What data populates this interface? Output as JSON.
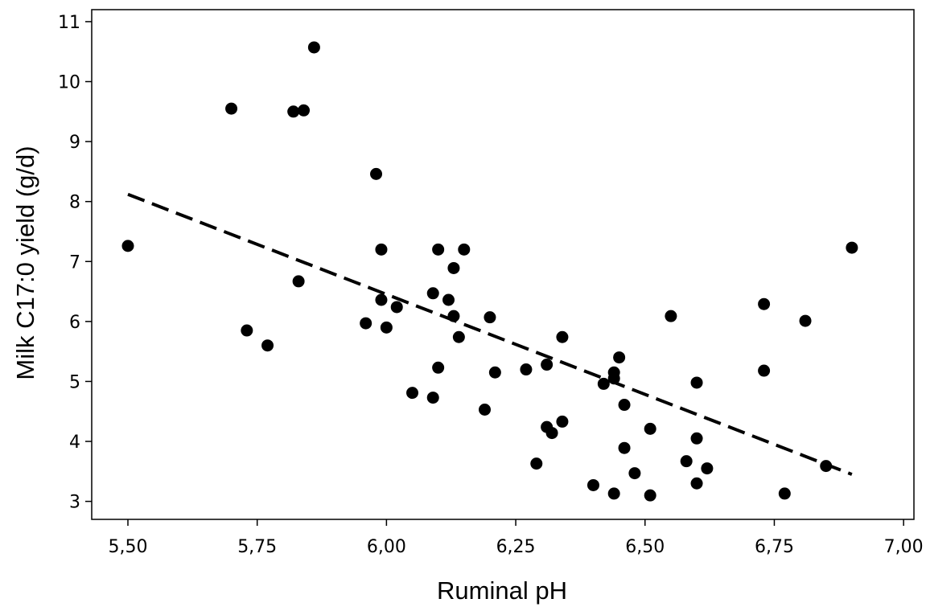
{
  "chart_data": {
    "type": "scatter",
    "title": "",
    "xlabel": "Ruminal pH",
    "ylabel": "Milk C17:0 yield (g/d)",
    "xlim": [
      5.43,
      7.02
    ],
    "ylim": [
      2.7,
      11.2
    ],
    "xticks": [
      5.5,
      5.75,
      6.0,
      6.25,
      6.5,
      6.75,
      7.0
    ],
    "xtick_labels": [
      "5,50",
      "5,75",
      "6,00",
      "6,25",
      "6,50",
      "6,75",
      "7,00"
    ],
    "yticks": [
      3,
      4,
      5,
      6,
      7,
      8,
      9,
      10,
      11
    ],
    "ytick_labels": [
      "3",
      "4",
      "5",
      "6",
      "7",
      "8",
      "9",
      "10",
      "11"
    ],
    "grid": false,
    "legend": "none",
    "marker_color": "#000000",
    "trend_line": {
      "style": "dashed",
      "color": "#000000",
      "x": [
        5.5,
        6.9
      ],
      "y": [
        8.12,
        3.45
      ]
    },
    "points": [
      {
        "x": 5.5,
        "y": 7.26
      },
      {
        "x": 5.7,
        "y": 9.55
      },
      {
        "x": 5.73,
        "y": 5.85
      },
      {
        "x": 5.77,
        "y": 5.6
      },
      {
        "x": 5.82,
        "y": 9.5
      },
      {
        "x": 5.83,
        "y": 6.67
      },
      {
        "x": 5.84,
        "y": 9.52
      },
      {
        "x": 5.86,
        "y": 10.57
      },
      {
        "x": 5.96,
        "y": 5.97
      },
      {
        "x": 5.98,
        "y": 8.46
      },
      {
        "x": 5.99,
        "y": 7.2
      },
      {
        "x": 5.99,
        "y": 6.36
      },
      {
        "x": 6.0,
        "y": 5.9
      },
      {
        "x": 6.02,
        "y": 6.24
      },
      {
        "x": 6.05,
        "y": 4.81
      },
      {
        "x": 6.09,
        "y": 6.47
      },
      {
        "x": 6.09,
        "y": 4.73
      },
      {
        "x": 6.1,
        "y": 7.2
      },
      {
        "x": 6.1,
        "y": 5.23
      },
      {
        "x": 6.12,
        "y": 6.36
      },
      {
        "x": 6.13,
        "y": 6.89
      },
      {
        "x": 6.13,
        "y": 6.09
      },
      {
        "x": 6.14,
        "y": 5.74
      },
      {
        "x": 6.15,
        "y": 7.2
      },
      {
        "x": 6.19,
        "y": 4.53
      },
      {
        "x": 6.2,
        "y": 6.07
      },
      {
        "x": 6.21,
        "y": 5.15
      },
      {
        "x": 6.27,
        "y": 5.2
      },
      {
        "x": 6.29,
        "y": 3.63
      },
      {
        "x": 6.31,
        "y": 5.28
      },
      {
        "x": 6.31,
        "y": 4.24
      },
      {
        "x": 6.32,
        "y": 4.14
      },
      {
        "x": 6.34,
        "y": 5.74
      },
      {
        "x": 6.34,
        "y": 4.33
      },
      {
        "x": 6.4,
        "y": 3.27
      },
      {
        "x": 6.42,
        "y": 4.96
      },
      {
        "x": 6.44,
        "y": 5.15
      },
      {
        "x": 6.44,
        "y": 5.05
      },
      {
        "x": 6.44,
        "y": 3.13
      },
      {
        "x": 6.45,
        "y": 5.4
      },
      {
        "x": 6.46,
        "y": 4.61
      },
      {
        "x": 6.46,
        "y": 3.89
      },
      {
        "x": 6.48,
        "y": 3.47
      },
      {
        "x": 6.51,
        "y": 4.21
      },
      {
        "x": 6.51,
        "y": 3.1
      },
      {
        "x": 6.55,
        "y": 6.09
      },
      {
        "x": 6.58,
        "y": 3.67
      },
      {
        "x": 6.6,
        "y": 4.98
      },
      {
        "x": 6.6,
        "y": 4.05
      },
      {
        "x": 6.6,
        "y": 3.3
      },
      {
        "x": 6.62,
        "y": 3.55
      },
      {
        "x": 6.73,
        "y": 6.29
      },
      {
        "x": 6.73,
        "y": 5.18
      },
      {
        "x": 6.77,
        "y": 3.13
      },
      {
        "x": 6.81,
        "y": 6.01
      },
      {
        "x": 6.85,
        "y": 3.59
      },
      {
        "x": 6.9,
        "y": 7.23
      }
    ]
  }
}
